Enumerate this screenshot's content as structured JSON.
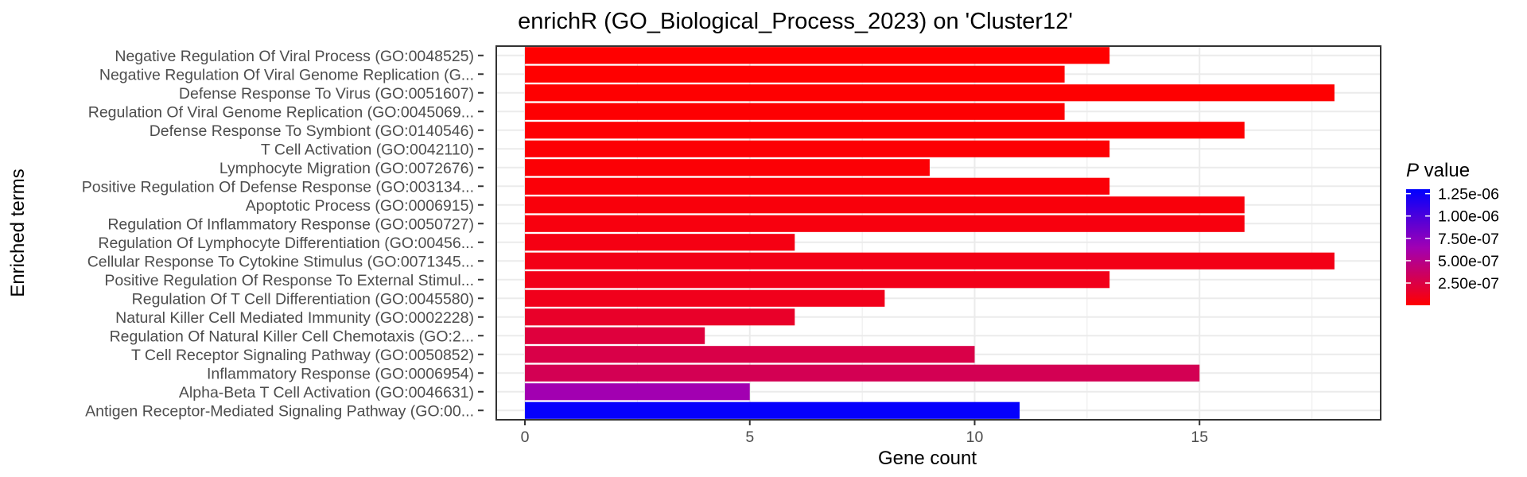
{
  "chart_data": {
    "type": "bar",
    "orientation": "horizontal",
    "title": "enrichR (GO_Biological_Process_2023) on 'Cluster12'",
    "xlabel": "Gene count",
    "ylabel": "Enriched terms",
    "xlim": [
      0,
      19
    ],
    "xticks": [
      0,
      5,
      10,
      15
    ],
    "grid": true,
    "legend_position": "right",
    "legend": {
      "title_italic": "P",
      "title_rest": " value",
      "ticks": [
        "1.25e-06",
        "1.00e-06",
        "7.50e-07",
        "5.00e-07",
        "2.50e-07"
      ],
      "tick_values": [
        1.25e-06,
        1e-06,
        7.5e-07,
        5e-07,
        2.5e-07
      ],
      "range": [
        1e-09,
        1.3e-06
      ],
      "color_low": "#ff0000",
      "color_high": "#0000ff"
    },
    "categories": [
      "Negative Regulation Of Viral Process (GO:0048525)",
      "Negative Regulation Of Viral Genome Replication (G...",
      "Defense Response To Virus (GO:0051607)",
      "Regulation Of Viral Genome Replication (GO:0045069...",
      "Defense Response To Symbiont (GO:0140546)",
      "T Cell Activation (GO:0042110)",
      "Lymphocyte Migration (GO:0072676)",
      "Positive Regulation Of Defense Response (GO:003134...",
      "Apoptotic Process (GO:0006915)",
      "Regulation Of Inflammatory Response (GO:0050727)",
      "Regulation Of Lymphocyte Differentiation (GO:00456...",
      "Cellular Response To Cytokine Stimulus (GO:0071345...",
      "Positive Regulation Of Response To External Stimul...",
      "Regulation Of T Cell Differentiation (GO:0045580)",
      "Natural Killer Cell Mediated Immunity (GO:0002228)",
      "Regulation Of Natural Killer Cell Chemotaxis (GO:2...",
      "T Cell Receptor Signaling Pathway (GO:0050852)",
      "Inflammatory Response (GO:0006954)",
      "Alpha-Beta T Cell Activation (GO:0046631)",
      "Antigen Receptor-Mediated Signaling Pathway (GO:00..."
    ],
    "values": [
      13,
      12,
      18,
      12,
      16,
      13,
      9,
      13,
      16,
      16,
      6,
      18,
      13,
      8,
      6,
      4,
      10,
      15,
      5,
      11
    ],
    "p_values": [
      1e-09,
      2e-09,
      5e-09,
      8e-09,
      1e-08,
      1.5e-08,
      2e-08,
      3e-08,
      4e-08,
      5e-08,
      7e-08,
      8e-08,
      9e-08,
      1e-07,
      1.5e-07,
      2.2e-07,
      2.6e-07,
      3e-07,
      6.4e-07,
      1.28e-06
    ]
  }
}
